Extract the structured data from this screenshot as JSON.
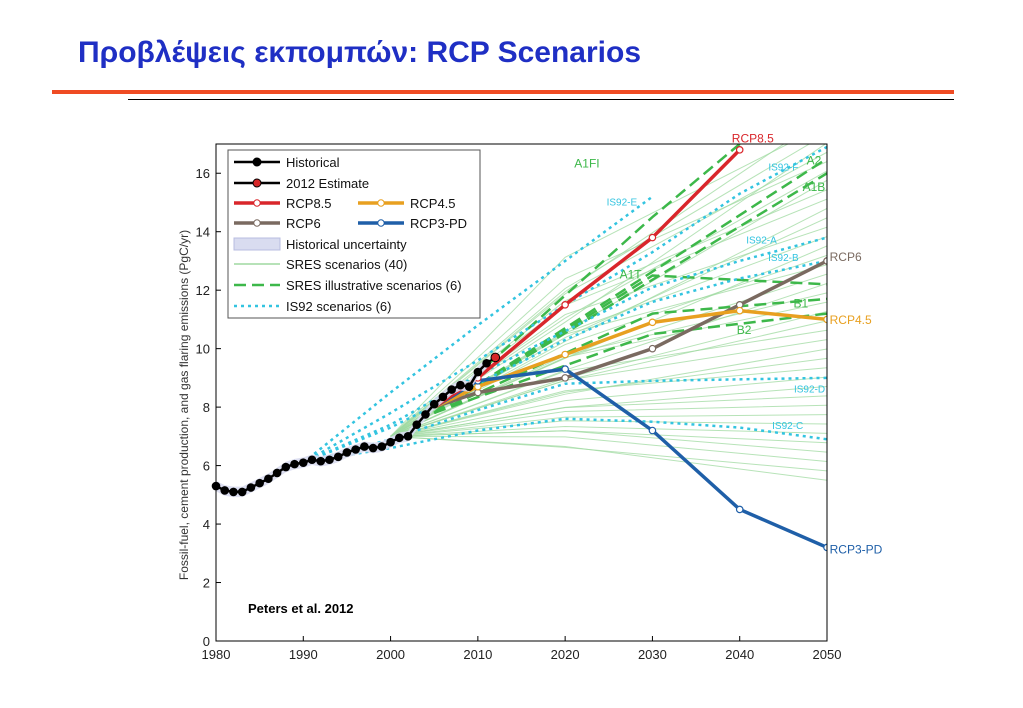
{
  "slide": {
    "title": "Προβλέψεις εκπομπών:  RCP Scenarios"
  },
  "chart_data": {
    "type": "line",
    "title": "",
    "xlabel": "",
    "ylabel": "Fossil-fuel, cement production, and gas flaring emissions (PgC/yr)",
    "xlim": [
      1980,
      2050
    ],
    "ylim": [
      0,
      17
    ],
    "x_ticks": [
      1980,
      1990,
      2000,
      2010,
      2020,
      2030,
      2040,
      2050
    ],
    "y_ticks": [
      0,
      2,
      4,
      6,
      8,
      10,
      12,
      14,
      16
    ],
    "grid": false,
    "legend_position": "top-left",
    "legend": {
      "historical": "Historical",
      "estimate": "2012 Estimate",
      "rcp85": "RCP8.5",
      "rcp45": "RCP4.5",
      "rcp6": "RCP6",
      "rcp3pd": "RCP3-PD",
      "uncertainty": "Historical uncertainty",
      "sres": "SRES scenarios (40)",
      "sres_ill": "SRES illustrative scenarios (6)",
      "is92": "IS92 scenarios (6)"
    },
    "colors": {
      "historical": "#000000",
      "estimate": "#d62728",
      "rcp85": "#d9262b",
      "rcp45": "#e8a020",
      "rcp6": "#7a6a60",
      "rcp3pd": "#1f5fa8",
      "sres": "#9fd9a0",
      "sres_ill": "#3db84a",
      "is92": "#33c4e0",
      "uncertainty": "#d9dcf0"
    },
    "annotation": "Peters et al. 2012",
    "series": [
      {
        "name": "Historical",
        "key": "historical",
        "x": [
          1980,
          1981,
          1982,
          1983,
          1984,
          1985,
          1986,
          1987,
          1988,
          1989,
          1990,
          1991,
          1992,
          1993,
          1994,
          1995,
          1996,
          1997,
          1998,
          1999,
          2000,
          2001,
          2002,
          2003,
          2004,
          2005,
          2006,
          2007,
          2008,
          2009,
          2010,
          2011
        ],
        "y": [
          5.3,
          5.15,
          5.1,
          5.1,
          5.25,
          5.4,
          5.55,
          5.75,
          5.95,
          6.05,
          6.1,
          6.2,
          6.15,
          6.2,
          6.3,
          6.45,
          6.55,
          6.65,
          6.6,
          6.65,
          6.8,
          6.95,
          7.0,
          7.4,
          7.75,
          8.1,
          8.35,
          8.6,
          8.75,
          8.7,
          9.2,
          9.5
        ]
      },
      {
        "name": "2012 Estimate",
        "key": "estimate",
        "x": [
          2012
        ],
        "y": [
          9.7
        ]
      },
      {
        "name": "RCP8.5",
        "key": "rcp85",
        "x": [
          2005,
          2010,
          2020,
          2030,
          2040
        ],
        "y": [
          8.0,
          9.0,
          11.5,
          13.8,
          16.8
        ]
      },
      {
        "name": "RCP6",
        "key": "rcp6",
        "x": [
          2005,
          2010,
          2020,
          2030,
          2040,
          2050
        ],
        "y": [
          8.0,
          8.5,
          9.0,
          10.0,
          11.5,
          13.0
        ]
      },
      {
        "name": "RCP4.5",
        "key": "rcp45",
        "x": [
          2005,
          2010,
          2020,
          2030,
          2040,
          2050
        ],
        "y": [
          8.0,
          8.7,
          9.8,
          10.9,
          11.3,
          11.0
        ]
      },
      {
        "name": "RCP3-PD",
        "key": "rcp3pd",
        "x": [
          2005,
          2010,
          2020,
          2030,
          2040,
          2050
        ],
        "y": [
          8.0,
          8.9,
          9.3,
          7.2,
          4.5,
          3.2
        ]
      }
    ],
    "sres_illustrative": [
      {
        "name": "A1FI",
        "x": [
          2005,
          2030,
          2040
        ],
        "y": [
          7.8,
          14.5,
          17.0
        ]
      },
      {
        "name": "A2",
        "x": [
          2005,
          2050
        ],
        "y": [
          7.8,
          16.5
        ]
      },
      {
        "name": "A1B",
        "x": [
          2005,
          2050
        ],
        "y": [
          7.8,
          16.0
        ]
      },
      {
        "name": "A1T",
        "x": [
          2005,
          2030,
          2050
        ],
        "y": [
          7.8,
          12.5,
          12.2
        ]
      },
      {
        "name": "B1",
        "x": [
          2005,
          2030,
          2050
        ],
        "y": [
          7.8,
          11.2,
          11.7
        ]
      },
      {
        "name": "B2",
        "x": [
          2005,
          2030,
          2050
        ],
        "y": [
          7.8,
          10.5,
          11.2
        ]
      }
    ],
    "is92": [
      {
        "name": "IS92-E",
        "x": [
          1990,
          2000,
          2010,
          2020,
          2030
        ],
        "y": [
          6.1,
          8.5,
          10.8,
          13.0,
          15.2
        ]
      },
      {
        "name": "IS92-F",
        "x": [
          1990,
          2000,
          2010,
          2020,
          2030,
          2040,
          2050
        ],
        "y": [
          6.1,
          7.8,
          9.6,
          11.5,
          13.3,
          15.3,
          16.9
        ]
      },
      {
        "name": "IS92-A",
        "x": [
          1990,
          2000,
          2010,
          2020,
          2030,
          2040,
          2050
        ],
        "y": [
          6.1,
          7.4,
          9.1,
          10.6,
          12.1,
          13.0,
          13.8
        ]
      },
      {
        "name": "IS92-B",
        "x": [
          1990,
          2000,
          2010,
          2020,
          2030,
          2040,
          2050
        ],
        "y": [
          6.1,
          7.3,
          8.8,
          10.3,
          11.6,
          12.4,
          13.0
        ]
      },
      {
        "name": "IS92-D",
        "x": [
          1990,
          2000,
          2010,
          2020,
          2030,
          2040,
          2050
        ],
        "y": [
          6.1,
          6.9,
          7.9,
          8.8,
          8.9,
          8.95,
          9.0
        ]
      },
      {
        "name": "IS92-C",
        "x": [
          1990,
          2000,
          2010,
          2020,
          2030,
          2040,
          2050
        ],
        "y": [
          6.1,
          6.6,
          7.2,
          7.6,
          7.5,
          7.3,
          6.9
        ]
      }
    ]
  }
}
